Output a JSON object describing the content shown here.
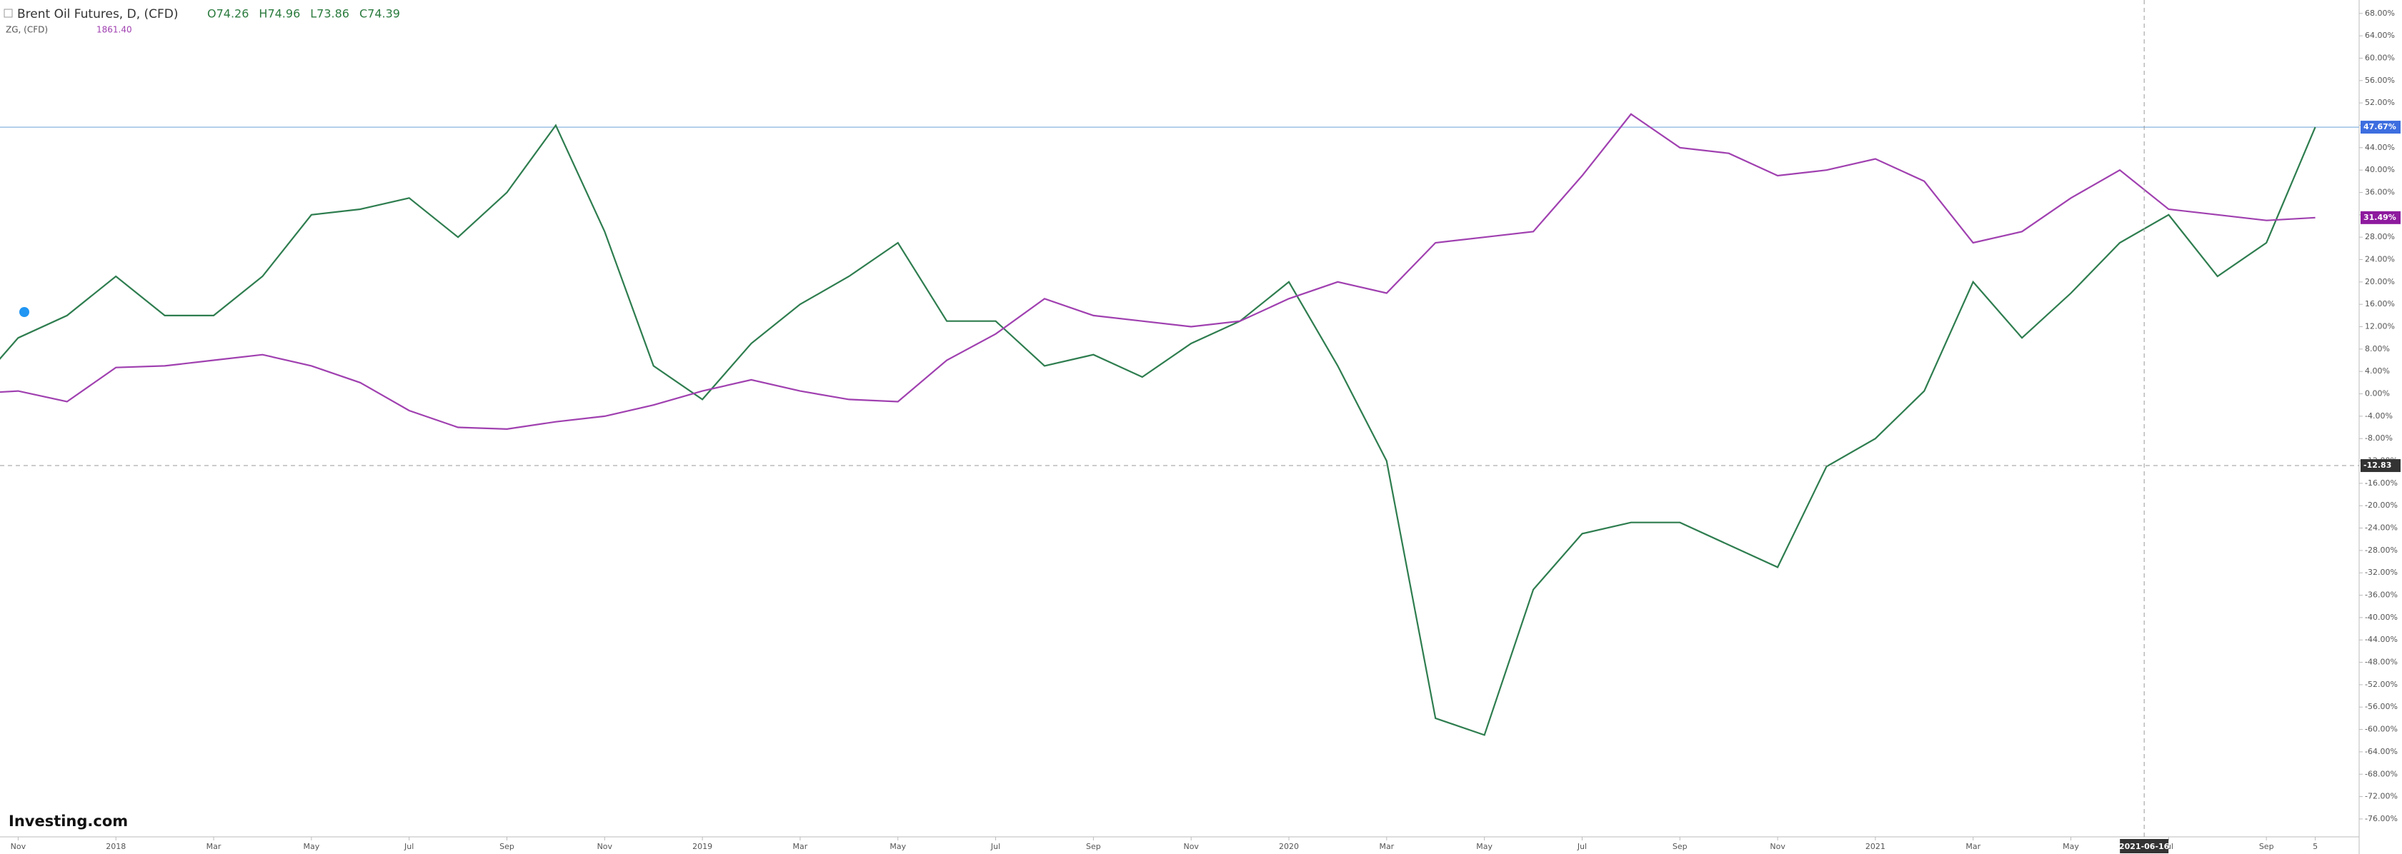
{
  "chart_data": {
    "type": "line",
    "title": "Brent Oil Futures, D, (CFD)",
    "ohlc_labels": [
      "O74.26",
      "H74.96",
      "L73.86",
      "C74.39"
    ],
    "subtitle": "ZG, (CFD)",
    "subtitle_value": "1861.40",
    "logo": "Investing.com",
    "x": [
      "2017-10",
      "2017-11",
      "2017-12",
      "2018-01",
      "2018-02",
      "2018-03",
      "2018-04",
      "2018-05",
      "2018-06",
      "2018-07",
      "2018-08",
      "2018-09",
      "2018-10",
      "2018-11",
      "2018-12",
      "2019-01",
      "2019-02",
      "2019-03",
      "2019-04",
      "2019-05",
      "2019-06",
      "2019-07",
      "2019-08",
      "2019-09",
      "2019-10",
      "2019-11",
      "2019-12",
      "2020-01",
      "2020-02",
      "2020-03",
      "2020-04",
      "2020-05",
      "2020-06",
      "2020-07",
      "2020-08",
      "2020-09",
      "2020-10",
      "2020-11",
      "2020-12",
      "2021-01",
      "2021-02",
      "2021-03",
      "2021-04",
      "2021-05",
      "2021-06",
      "2021-07",
      "2021-08",
      "2021-09",
      "2021-10"
    ],
    "series": [
      {
        "name": "Brent Oil Futures",
        "color": "#2e7d4f",
        "values": [
          0,
          10,
          14,
          21,
          14,
          14,
          21,
          32,
          33,
          35,
          28,
          36,
          48,
          29,
          5,
          -1,
          9,
          16,
          21,
          27,
          13,
          13,
          5,
          7,
          3,
          9,
          13,
          20,
          5,
          -12,
          -58,
          -61,
          -35,
          -25,
          -23,
          -23,
          -27,
          -31,
          -13,
          -8,
          0.5,
          20,
          10,
          18,
          27,
          32,
          21,
          27,
          47.67
        ],
        "last": {
          "value": 47.67,
          "label": "47.67%"
        },
        "tag_color": "#3d6ee0"
      },
      {
        "name": "ZG",
        "color": "#a040b0",
        "values": [
          0,
          0.5,
          -1.4,
          4.7,
          5,
          6,
          7,
          5,
          2,
          -3,
          -6,
          -6.3,
          -5,
          -4,
          -2,
          0.5,
          2.5,
          0.5,
          -1,
          -1.4,
          6,
          10.7,
          17,
          14,
          13,
          12,
          13,
          17,
          20,
          18,
          27,
          28,
          29,
          39,
          50,
          44,
          43,
          39,
          40,
          42,
          38,
          27,
          29,
          35,
          40,
          33,
          32,
          31,
          31.49
        ],
        "last": {
          "value": 31.49,
          "label": "31.49%"
        },
        "tag_color": "#8e1a9e"
      }
    ],
    "xlim": [
      "2017-10",
      "2021-11"
    ],
    "xticks": [
      {
        "value": "2017-11",
        "label": "Nov"
      },
      {
        "value": "2018-01",
        "label": "2018"
      },
      {
        "value": "2018-03",
        "label": "Mar"
      },
      {
        "value": "2018-05",
        "label": "May"
      },
      {
        "value": "2018-07",
        "label": "Jul"
      },
      {
        "value": "2018-09",
        "label": "Sep"
      },
      {
        "value": "2018-11",
        "label": "Nov"
      },
      {
        "value": "2019-01",
        "label": "2019"
      },
      {
        "value": "2019-03",
        "label": "Mar"
      },
      {
        "value": "2019-05",
        "label": "May"
      },
      {
        "value": "2019-07",
        "label": "Jul"
      },
      {
        "value": "2019-09",
        "label": "Sep"
      },
      {
        "value": "2019-11",
        "label": "Nov"
      },
      {
        "value": "2020-01",
        "label": "2020"
      },
      {
        "value": "2020-03",
        "label": "Mar"
      },
      {
        "value": "2020-05",
        "label": "May"
      },
      {
        "value": "2020-07",
        "label": "Jul"
      },
      {
        "value": "2020-09",
        "label": "Sep"
      },
      {
        "value": "2020-11",
        "label": "Nov"
      },
      {
        "value": "2021-01",
        "label": "2021"
      },
      {
        "value": "2021-03",
        "label": "Mar"
      },
      {
        "value": "2021-05",
        "label": "May"
      },
      {
        "value": "2021-07",
        "label": "Jul"
      },
      {
        "value": "2021-09",
        "label": "Sep"
      },
      {
        "value": "2021-10",
        "label": "5"
      }
    ],
    "ylim": [
      -79.2,
      70.4
    ],
    "yticks": [
      {
        "value": 68,
        "label": "68.00%"
      },
      {
        "value": 64,
        "label": "64.00%"
      },
      {
        "value": 60,
        "label": "60.00%"
      },
      {
        "value": 56,
        "label": "56.00%"
      },
      {
        "value": 52,
        "label": "52.00%"
      },
      {
        "value": 48,
        "label": "48.00%"
      },
      {
        "value": 44,
        "label": "44.00%"
      },
      {
        "value": 40,
        "label": "40.00%"
      },
      {
        "value": 36,
        "label": "36.00%"
      },
      {
        "value": 32,
        "label": "32.00%"
      },
      {
        "value": 28,
        "label": "28.00%"
      },
      {
        "value": 24,
        "label": "24.00%"
      },
      {
        "value": 20,
        "label": "20.00%"
      },
      {
        "value": 16,
        "label": "16.00%"
      },
      {
        "value": 12,
        "label": "12.00%"
      },
      {
        "value": 8,
        "label": "8.00%"
      },
      {
        "value": 4,
        "label": "4.00%"
      },
      {
        "value": 0,
        "label": "0.00%"
      },
      {
        "value": -4,
        "label": "-4.00%"
      },
      {
        "value": -8,
        "label": "-8.00%"
      },
      {
        "value": -12,
        "label": "-12.00%"
      },
      {
        "value": -16,
        "label": "-16.00%"
      },
      {
        "value": -20,
        "label": "-20.00%"
      },
      {
        "value": -24,
        "label": "-24.00%"
      },
      {
        "value": -28,
        "label": "-28.00%"
      },
      {
        "value": -32,
        "label": "-32.00%"
      },
      {
        "value": -36,
        "label": "-36.00%"
      },
      {
        "value": -40,
        "label": "-40.00%"
      },
      {
        "value": -44,
        "label": "-44.00%"
      },
      {
        "value": -48,
        "label": "-48.00%"
      },
      {
        "value": -52,
        "label": "-52.00%"
      },
      {
        "value": -56,
        "label": "-56.00%"
      },
      {
        "value": -60,
        "label": "-60.00%"
      },
      {
        "value": -64,
        "label": "-64.00%"
      },
      {
        "value": -68,
        "label": "-68.00%"
      },
      {
        "value": -72,
        "label": "-72.00%"
      },
      {
        "value": -76,
        "label": "-76.00%"
      }
    ],
    "crosshair": {
      "x_label": "2021-06-16",
      "y": -12.83
    }
  }
}
